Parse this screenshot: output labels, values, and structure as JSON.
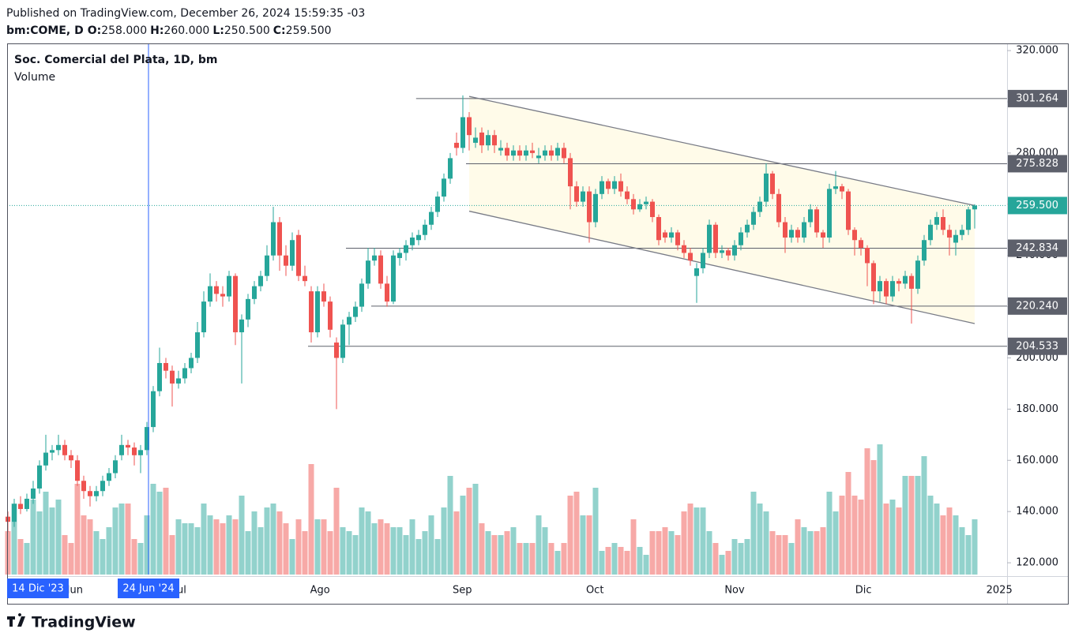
{
  "chart_data": {
    "type": "candlestick",
    "published": "Published on TradingView.com, December 26, 2024 15:59:35 -03",
    "symbol": "bm:COME, D",
    "ohlc_legend": [
      {
        "key": "O:",
        "text": "258.000"
      },
      {
        "key": "H:",
        "text": "260.000"
      },
      {
        "key": "L:",
        "text": "250.500"
      },
      {
        "key": "C:",
        "text": "259.500"
      }
    ],
    "title": "Soc. Comercial del Plata, 1D, bm",
    "volume_label": "Volume",
    "up_color": "#26a69a",
    "down_color": "#ef5350",
    "grid": false,
    "ylim": [
      115.4,
      322.5
    ],
    "yticks": [
      {
        "value": 120,
        "label": "120.000"
      },
      {
        "value": 140,
        "label": "140.000"
      },
      {
        "value": 160,
        "label": "160.000"
      },
      {
        "value": 180,
        "label": "180.000"
      },
      {
        "value": 200,
        "label": "200.000"
      },
      {
        "value": 220,
        "label": "220.000"
      },
      {
        "value": 240,
        "label": "240.000"
      },
      {
        "value": 260,
        "label": "260.000"
      },
      {
        "value": 280,
        "label": "280.000"
      },
      {
        "value": 300,
        "label": "300.000"
      },
      {
        "value": 320,
        "label": "320.000"
      }
    ],
    "xlim": [
      -0.125,
      158.125
    ],
    "xticks": [
      {
        "value": 10.6,
        "label": "Jun"
      },
      {
        "value": 27.25,
        "label": "Jul"
      },
      {
        "value": 49.4,
        "label": "Ago"
      },
      {
        "value": 71.9,
        "label": "Sep"
      },
      {
        "value": 92.9,
        "label": "Oct"
      },
      {
        "value": 115,
        "label": "Nov"
      },
      {
        "value": 135.4,
        "label": "Dic"
      },
      {
        "value": 156.9,
        "label": "2025"
      }
    ],
    "time_labels": [
      {
        "value": 4.75,
        "label": "14 Dic '23",
        "line": false
      },
      {
        "value": 22.25,
        "label": "24 Jun '24",
        "line": true
      }
    ],
    "levels": [
      {
        "value": 301.264,
        "from": 64.6
      },
      {
        "value": 275.828,
        "from": 72.5
      },
      {
        "value": 242.834,
        "from": 53.5
      },
      {
        "value": {
          "value": 220.24,
          "label": "220.240"
        },
        "from": 57.5
      },
      {
        "value": 204.533,
        "from": 47.5
      }
    ],
    "last_price": {
      "value": 259.5,
      "label": "259.500"
    },
    "channel": {
      "upper": [
        [
          73,
          302.1
        ],
        [
          153,
          259.5
        ]
      ],
      "lower": [
        [
          73,
          257.3
        ],
        [
          153,
          213.4
        ]
      ]
    },
    "candles": [
      [
        138,
        140,
        132,
        136
      ],
      [
        136,
        145,
        134,
        143
      ],
      [
        143,
        146,
        139,
        141
      ],
      [
        141,
        147,
        140,
        145
      ],
      [
        145,
        152,
        143,
        149
      ],
      [
        149,
        160,
        147,
        158
      ],
      [
        158,
        170,
        156,
        163
      ],
      [
        163,
        166,
        160,
        164
      ],
      [
        164,
        170,
        162,
        166
      ],
      [
        166,
        168,
        160,
        162
      ],
      [
        162,
        164,
        157,
        160
      ],
      [
        160,
        162,
        150,
        152
      ],
      [
        152,
        154,
        145,
        148
      ],
      [
        148,
        150,
        142,
        146
      ],
      [
        146,
        150,
        144,
        148
      ],
      [
        148,
        154,
        146,
        152
      ],
      [
        152,
        157,
        150,
        155
      ],
      [
        155,
        162,
        153,
        160
      ],
      [
        162,
        170,
        160,
        166
      ],
      [
        166,
        168,
        162,
        165
      ],
      [
        165,
        167,
        158,
        162
      ],
      [
        162,
        166,
        155,
        164
      ],
      [
        164,
        175,
        162,
        173
      ],
      [
        173,
        189,
        171,
        187
      ],
      [
        187,
        204,
        185,
        198
      ],
      [
        198,
        200,
        192,
        195
      ],
      [
        195,
        197,
        181,
        190
      ],
      [
        190,
        195,
        188,
        192
      ],
      [
        192,
        198,
        190,
        196
      ],
      [
        196,
        202,
        194,
        200
      ],
      [
        200,
        214,
        198,
        210
      ],
      [
        210,
        226,
        208,
        222
      ],
      [
        222,
        233,
        220,
        228
      ],
      [
        228,
        230,
        222,
        225
      ],
      [
        225,
        228,
        220,
        224
      ],
      [
        224,
        234,
        222,
        232
      ],
      [
        232,
        233,
        205,
        210
      ],
      [
        210,
        217,
        190,
        215
      ],
      [
        215,
        225,
        212,
        223
      ],
      [
        223,
        230,
        221,
        228
      ],
      [
        228,
        234,
        226,
        232
      ],
      [
        232,
        244,
        230,
        240
      ],
      [
        240,
        259,
        238,
        253
      ],
      [
        253,
        255,
        234,
        240
      ],
      [
        240,
        244,
        232,
        236
      ],
      [
        236,
        249,
        234,
        246
      ],
      [
        248,
        250,
        230,
        232
      ],
      [
        232,
        236,
        228,
        230
      ],
      [
        226,
        228,
        206,
        210
      ],
      [
        210,
        228,
        208,
        226
      ],
      [
        226,
        229,
        220,
        222
      ],
      [
        222,
        224,
        208,
        211
      ],
      [
        206,
        208,
        180,
        200
      ],
      [
        200,
        215,
        198,
        213
      ],
      [
        213,
        218,
        205,
        216
      ],
      [
        216,
        222,
        214,
        220
      ],
      [
        220,
        231,
        218,
        229
      ],
      [
        229,
        243,
        227,
        238
      ],
      [
        238,
        243,
        236,
        240
      ],
      [
        240,
        242,
        227,
        229
      ],
      [
        229,
        232,
        220,
        222
      ],
      [
        222,
        242,
        221,
        240
      ],
      [
        239,
        243,
        236,
        241
      ],
      [
        241,
        246,
        238,
        244
      ],
      [
        244,
        249,
        242,
        247
      ],
      [
        246,
        250,
        244,
        248
      ],
      [
        248,
        254,
        246,
        252
      ],
      [
        252,
        259,
        250,
        257
      ],
      [
        257,
        265,
        255,
        263
      ],
      [
        263,
        272,
        261,
        270
      ],
      [
        270,
        280,
        268,
        278
      ],
      [
        284,
        288,
        279,
        282
      ],
      [
        282,
        302.5,
        280,
        294
      ],
      [
        294,
        296,
        281,
        287
      ],
      [
        284,
        290,
        282,
        286
      ],
      [
        288,
        290,
        280,
        283
      ],
      [
        283,
        289,
        281,
        287
      ],
      [
        287,
        289,
        280,
        283
      ],
      [
        281,
        285,
        279,
        282
      ],
      [
        282,
        284,
        277,
        279
      ],
      [
        279,
        283,
        277,
        281
      ],
      [
        281,
        283,
        277,
        279
      ],
      [
        279,
        283,
        277,
        281
      ],
      [
        281,
        284,
        278,
        280
      ],
      [
        278,
        282,
        276,
        279
      ],
      [
        279,
        283,
        277,
        281
      ],
      [
        281,
        283,
        277,
        279
      ],
      [
        279,
        284,
        277,
        282
      ],
      [
        282,
        284,
        276,
        278
      ],
      [
        278,
        280,
        258,
        267
      ],
      [
        267,
        269,
        259,
        261
      ],
      [
        261,
        267,
        259,
        265
      ],
      [
        265,
        267,
        245,
        253
      ],
      [
        253,
        266,
        251,
        264
      ],
      [
        264,
        271,
        262,
        269
      ],
      [
        269,
        270,
        264,
        266
      ],
      [
        266,
        271,
        264,
        269
      ],
      [
        269,
        272,
        263,
        265
      ],
      [
        265,
        267,
        260,
        262
      ],
      [
        262,
        264,
        256,
        258
      ],
      [
        258,
        262,
        257,
        260
      ],
      [
        260,
        263,
        258,
        261
      ],
      [
        261,
        262,
        253,
        255
      ],
      [
        255,
        256,
        244,
        246
      ],
      [
        249,
        250,
        245,
        247
      ],
      [
        247,
        251,
        245,
        249
      ],
      [
        249,
        250,
        242,
        244
      ],
      [
        244,
        246,
        239,
        241
      ],
      [
        241,
        243,
        236,
        238
      ],
      [
        232,
        237,
        221.5,
        235
      ],
      [
        235,
        243,
        233,
        241
      ],
      [
        241,
        254,
        239,
        252
      ],
      [
        252,
        253,
        239,
        241
      ],
      [
        241,
        244,
        239,
        242
      ],
      [
        242,
        243,
        238,
        240
      ],
      [
        240,
        246,
        238,
        244
      ],
      [
        244,
        251,
        242,
        249
      ],
      [
        249,
        254,
        247,
        252
      ],
      [
        252,
        259,
        250,
        257
      ],
      [
        257,
        263,
        255,
        261
      ],
      [
        261,
        276,
        259,
        272
      ],
      [
        272,
        273,
        262,
        264
      ],
      [
        264,
        266,
        251,
        253
      ],
      [
        253,
        255,
        241,
        247
      ],
      [
        247,
        252,
        245,
        250
      ],
      [
        250,
        251,
        245,
        247
      ],
      [
        247,
        255,
        245,
        253
      ],
      [
        253,
        260,
        251,
        258
      ],
      [
        258,
        259,
        247,
        249
      ],
      [
        249,
        250,
        243,
        247
      ],
      [
        247,
        268,
        245,
        266
      ],
      [
        266,
        273,
        264,
        267
      ],
      [
        267,
        268,
        262,
        265
      ],
      [
        265,
        266,
        248,
        250
      ],
      [
        250,
        251,
        240,
        246
      ],
      [
        246,
        247,
        240,
        243
      ],
      [
        243,
        244,
        228,
        237
      ],
      [
        237,
        238,
        221,
        226
      ],
      [
        226,
        232,
        222,
        230
      ],
      [
        230,
        231,
        221,
        224
      ],
      [
        224,
        232,
        222,
        230
      ],
      [
        230,
        231,
        226,
        229
      ],
      [
        229,
        234,
        227,
        232
      ],
      [
        232,
        233,
        213.4,
        227
      ],
      [
        227,
        240,
        225,
        238
      ],
      [
        238,
        248,
        236,
        246
      ],
      [
        246,
        254,
        244,
        252
      ],
      [
        252,
        257,
        250,
        255
      ],
      [
        255,
        258,
        248,
        250
      ],
      [
        250,
        252,
        240,
        247
      ],
      [
        245,
        250,
        240,
        248
      ],
      [
        248,
        252,
        246,
        250
      ],
      [
        250,
        259,
        248,
        258
      ],
      [
        258,
        260,
        250.5,
        259.5
      ]
    ],
    "volume": [
      55,
      90,
      45,
      40,
      95,
      80,
      105,
      85,
      95,
      50,
      40,
      115,
      75,
      70,
      55,
      45,
      60,
      85,
      90,
      90,
      45,
      40,
      75,
      115,
      105,
      110,
      50,
      70,
      65,
      65,
      60,
      90,
      75,
      70,
      65,
      75,
      70,
      100,
      55,
      80,
      60,
      85,
      90,
      80,
      65,
      45,
      70,
      55,
      140,
      70,
      70,
      55,
      110,
      60,
      55,
      50,
      85,
      80,
      65,
      70,
      65,
      60,
      60,
      50,
      70,
      45,
      55,
      75,
      45,
      85,
      125,
      80,
      100,
      110,
      115,
      65,
      55,
      50,
      50,
      55,
      60,
      40,
      40,
      40,
      75,
      60,
      40,
      30,
      40,
      100,
      105,
      75,
      75,
      110,
      30,
      35,
      40,
      35,
      30,
      70,
      35,
      25,
      55,
      55,
      60,
      55,
      50,
      80,
      90,
      85,
      85,
      55,
      40,
      25,
      30,
      45,
      40,
      45,
      105,
      90,
      80,
      55,
      50,
      50,
      40,
      70,
      60,
      55,
      55,
      60,
      105,
      80,
      100,
      130,
      100,
      95,
      160,
      145,
      165,
      90,
      95,
      85,
      125,
      125,
      125,
      150,
      100,
      90,
      75,
      85,
      75,
      60,
      50,
      70
    ],
    "brand": "TradingView"
  }
}
